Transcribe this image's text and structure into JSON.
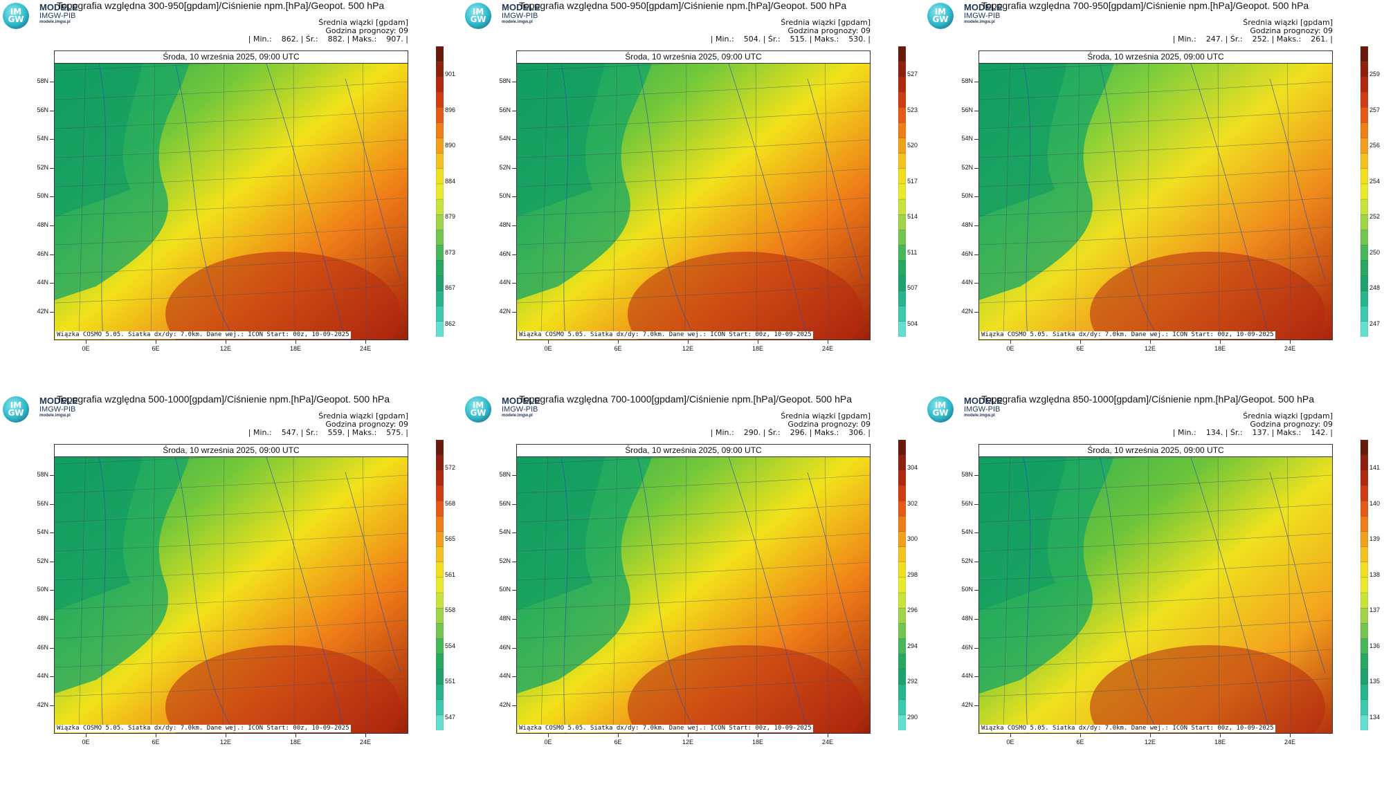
{
  "logo": {
    "text_line1": "IM",
    "text_line2": "GW",
    "brand": "MODELE",
    "org": "IMGW-PIB",
    "url": "modele.imgw.pl"
  },
  "common": {
    "date_header": "Środa, 10 września 2025, 09:00 UTC",
    "footer": "Wiązka COSMO 5.05. Siatka dx/dy: 7.0km. Dane wej.: ICON Start: 00z, 10-09-2025",
    "meta_line1": "Średnia wiązki [gpdam]",
    "meta_line2": "Godzina prognozy: 09",
    "lat_labels": [
      "58N",
      "56N",
      "54N",
      "52N",
      "50N",
      "48N",
      "46N",
      "44N",
      "42N"
    ],
    "lon_labels": [
      "0E",
      "6E",
      "12E",
      "18E",
      "24E"
    ]
  },
  "panels": [
    {
      "title": "Topografia względna 300-950[gpdam]/Ciśnienie npm.[hPa]/Geopot. 500 hPa",
      "stats": "| Min.:    862. | Śr.:    882. | Maks.:    907. |",
      "colorbar_ticks": [
        "901",
        "896",
        "890",
        "884",
        "879",
        "873",
        "867",
        "862"
      ],
      "field_style": "warm"
    },
    {
      "title": "Topografia względna 500-950[gpdam]/Ciśnienie npm.[hPa]/Geopot. 500 hPa",
      "stats": "| Min.:    504. | Śr.:    515. | Maks.:    530. |",
      "colorbar_ticks": [
        "527",
        "523",
        "520",
        "517",
        "514",
        "511",
        "507",
        "504"
      ],
      "field_style": "warm"
    },
    {
      "title": "Topografia względna 700-950[gpdam]/Ciśnienie npm.[hPa]/Geopot. 500 hPa",
      "stats": "| Min.:    247. | Śr.:    252. | Maks.:    261. |",
      "colorbar_ticks": [
        "259",
        "257",
        "256",
        "254",
        "252",
        "250",
        "248",
        "247"
      ],
      "field_style": "hot"
    },
    {
      "title": "Topografia względna 500-1000[gpdam]/Ciśnienie npm.[hPa]/Geopot. 500 hPa",
      "stats": "| Min.:    547. | Śr.:    559. | Maks.:    575. |",
      "colorbar_ticks": [
        "572",
        "568",
        "565",
        "561",
        "558",
        "554",
        "551",
        "547"
      ],
      "field_style": "warm"
    },
    {
      "title": "Topografia względna 700-1000[gpdam]/Ciśnienie npm.[hPa]/Geopot. 500 hPa",
      "stats": "| Min.:    290. | Śr.:    296. | Maks.:    306. |",
      "colorbar_ticks": [
        "304",
        "302",
        "300",
        "298",
        "296",
        "294",
        "292",
        "290"
      ],
      "field_style": "warm"
    },
    {
      "title": "Topografia względna 850-1000[gpdam]/Ciśnienie npm.[hPa]/Geopot. 500 hPa",
      "stats": "| Min.:    134. | Śr.:    137. | Maks.:    142. |",
      "colorbar_ticks": [
        "141",
        "140",
        "139",
        "138",
        "137",
        "136",
        "135",
        "134"
      ],
      "field_style": "patchy"
    }
  ],
  "colors": {
    "cold": "#1fae5e",
    "mid": "#f2e21a",
    "hot": "#b8280c"
  }
}
